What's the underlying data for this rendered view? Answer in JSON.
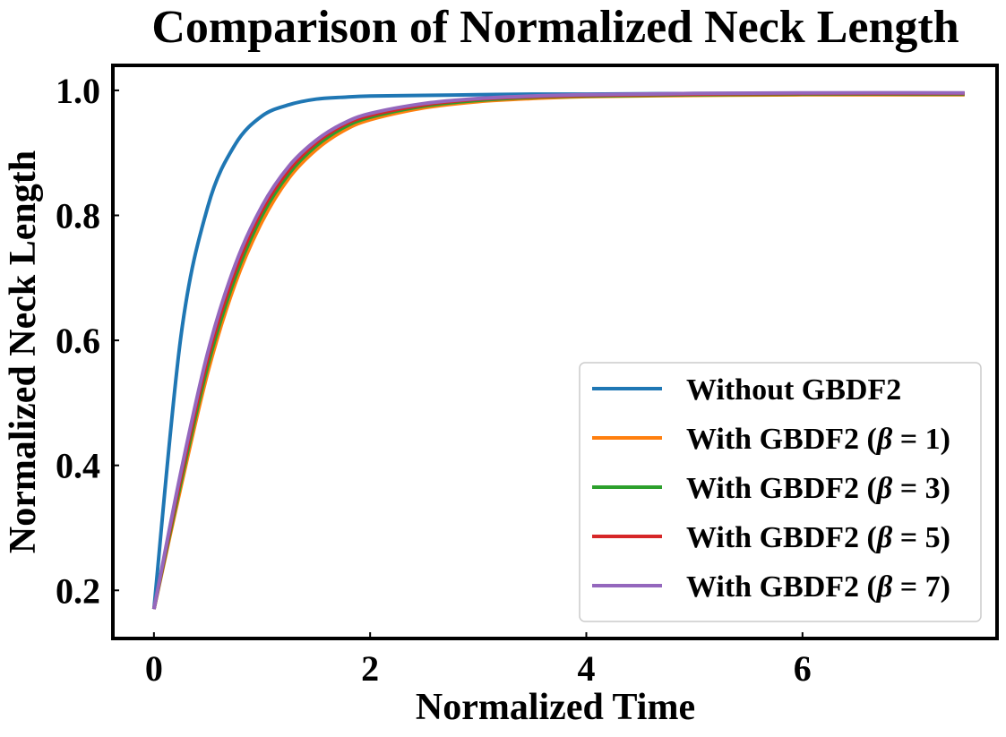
{
  "chart_data": {
    "type": "line",
    "title": "Comparison of Normalized Neck Length",
    "xlabel": "Normalized Time",
    "ylabel": "Normalized Neck Length",
    "xlim": [
      -0.38,
      7.8
    ],
    "ylim": [
      0.123,
      1.04
    ],
    "xticks": [
      0,
      2,
      4,
      6
    ],
    "yticks": [
      0.2,
      0.4,
      0.6,
      0.8,
      1.0
    ],
    "xtick_labels": [
      "0",
      "2",
      "4",
      "6"
    ],
    "ytick_labels": [
      "0.2",
      "0.4",
      "0.6",
      "0.8",
      "1.0"
    ],
    "grid": false,
    "legend_position": "lower-right",
    "x": [
      0,
      0.25,
      0.5,
      0.75,
      1.0,
      1.25,
      1.5,
      1.75,
      2.0,
      2.5,
      3.0,
      3.5,
      4.0,
      5.0,
      6.0,
      7.5
    ],
    "series": [
      {
        "name": "Without GBDF2",
        "color": "#1f77b4",
        "values": [
          0.17,
          0.607,
          0.815,
          0.913,
          0.959,
          0.977,
          0.986,
          0.989,
          0.991,
          0.992,
          0.993,
          0.994,
          0.994,
          0.995,
          0.995,
          0.995
        ]
      },
      {
        "name": "With GBDF2 (β = 1)",
        "legend": {
          "prefix": "With GBDF2 (",
          "symbol": "β",
          "suffix": " = 1)"
        },
        "color": "#ff7f0e",
        "values": [
          0.17,
          0.366,
          0.55,
          0.69,
          0.79,
          0.86,
          0.905,
          0.935,
          0.953,
          0.972,
          0.982,
          0.987,
          0.99,
          0.992,
          0.993,
          0.993
        ]
      },
      {
        "name": "With GBDF2 (β = 3)",
        "legend": {
          "prefix": "With GBDF2 (",
          "symbol": "β",
          "suffix": " = 3)"
        },
        "color": "#2ca02c",
        "values": [
          0.17,
          0.374,
          0.561,
          0.7,
          0.8,
          0.867,
          0.911,
          0.94,
          0.957,
          0.975,
          0.984,
          0.989,
          0.991,
          0.993,
          0.994,
          0.994
        ]
      },
      {
        "name": "With GBDF2 (β = 5)",
        "legend": {
          "prefix": "With GBDF2 (",
          "symbol": "β",
          "suffix": " = 5)"
        },
        "color": "#d62728",
        "values": [
          0.17,
          0.382,
          0.572,
          0.71,
          0.808,
          0.873,
          0.916,
          0.944,
          0.96,
          0.977,
          0.986,
          0.99,
          0.992,
          0.994,
          0.995,
          0.995
        ]
      },
      {
        "name": "With GBDF2 (β = 7)",
        "legend": {
          "prefix": "With GBDF2 (",
          "symbol": "β",
          "suffix": " = 7)"
        },
        "color": "#9467bd",
        "values": [
          0.17,
          0.39,
          0.582,
          0.72,
          0.815,
          0.879,
          0.92,
          0.947,
          0.963,
          0.979,
          0.987,
          0.991,
          0.993,
          0.995,
          0.996,
          0.996
        ]
      }
    ]
  }
}
